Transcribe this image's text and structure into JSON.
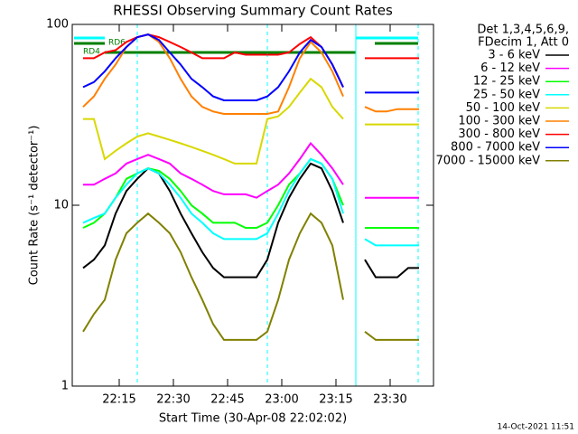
{
  "chart_data": {
    "type": "line",
    "title": "RHESSI Observing Summary Count Rates",
    "xlabel": "Start Time (30-Apr-08 22:02:02)",
    "ylabel": "Count Rate (s⁻¹ detector⁻¹)",
    "footer": "14-Oct-2021 11:51",
    "legend_header": [
      "Det 1,3,4,5,6,9,",
      "FDecim 1, Att 0"
    ],
    "annotations": [
      "RD6",
      "RD4"
    ],
    "log_y": true,
    "xlim": [
      "22:02",
      "23:42"
    ],
    "xticks": [
      "22:15",
      "22:30",
      "22:45",
      "23:00",
      "23:15",
      "23:30"
    ],
    "ylim": [
      1,
      100
    ],
    "yticks": [
      1,
      10,
      100
    ],
    "x": [
      "22:05",
      "22:08",
      "22:11",
      "22:14",
      "22:17",
      "22:20",
      "22:23",
      "22:26",
      "22:29",
      "22:32",
      "22:35",
      "22:38",
      "22:41",
      "22:44",
      "22:47",
      "22:50",
      "22:53",
      "22:56",
      "22:59",
      "23:02",
      "23:05",
      "23:08",
      "23:11",
      "23:14",
      "23:17",
      "23:20",
      "23:23",
      "23:26",
      "23:29",
      "23:32",
      "23:35",
      "23:38"
    ],
    "series": [
      {
        "name": "3 - 6 keV",
        "color": "#000000",
        "values": [
          4.5,
          5,
          6,
          9,
          12,
          14,
          16,
          15,
          12,
          9,
          7,
          5.5,
          4.5,
          4,
          4,
          4,
          4,
          5,
          8,
          11,
          14,
          17,
          16,
          12,
          8,
          null,
          5,
          4,
          4,
          4,
          4.5,
          4.5
        ]
      },
      {
        "name": "6 - 12 keV",
        "color": "#ff00ff",
        "values": [
          13,
          13,
          14,
          15,
          17,
          18,
          19,
          18,
          17,
          15,
          14,
          13,
          12,
          11.5,
          11.5,
          11.5,
          11,
          12,
          13,
          15,
          18,
          22,
          19,
          16,
          13,
          null,
          11,
          11,
          11,
          11,
          11,
          11
        ]
      },
      {
        "name": "12 - 25 keV",
        "color": "#00ff00",
        "values": [
          7.5,
          8,
          9,
          11,
          14,
          15,
          16,
          15.5,
          14,
          12,
          10,
          9,
          8,
          8,
          8,
          7.5,
          7.5,
          8,
          10,
          13,
          15,
          18,
          17,
          14,
          10,
          null,
          7.5,
          7.5,
          7.5,
          7.5,
          7.5,
          7.5
        ]
      },
      {
        "name": "25 - 50 keV",
        "color": "#00ffff",
        "values": [
          8,
          8.5,
          9,
          11,
          13,
          15,
          16,
          15,
          13,
          11,
          9,
          8,
          7,
          6.5,
          6.5,
          6.5,
          6.5,
          7,
          9,
          12,
          15,
          18,
          17,
          14,
          9,
          null,
          6.5,
          6,
          6,
          6,
          6,
          6
        ]
      },
      {
        "name": "50 - 100 keV",
        "color": "#d8d800",
        "values": [
          30,
          30,
          18,
          20,
          22,
          24,
          25,
          24,
          23,
          22,
          21,
          20,
          19,
          18,
          17,
          17,
          17,
          30,
          31,
          35,
          42,
          50,
          45,
          35,
          30,
          null,
          28,
          28,
          28,
          28,
          28,
          28
        ]
      },
      {
        "name": "100 - 300 keV",
        "color": "#ff8000",
        "values": [
          35,
          40,
          50,
          60,
          75,
          85,
          88,
          80,
          65,
          50,
          40,
          35,
          33,
          32,
          32,
          32,
          32,
          32,
          33,
          45,
          65,
          80,
          70,
          55,
          40,
          null,
          35,
          33,
          33,
          34,
          34,
          34
        ]
      },
      {
        "name": "300 - 800 keV",
        "color": "#ff0000",
        "values": [
          65,
          65,
          70,
          72,
          80,
          85,
          88,
          85,
          80,
          75,
          70,
          65,
          65,
          65,
          70,
          68,
          68,
          68,
          68,
          70,
          78,
          85,
          75,
          60,
          45,
          null,
          65,
          65,
          65,
          65,
          65,
          65
        ]
      },
      {
        "name": "800 - 7000 keV",
        "color": "#0000ff",
        "values": [
          45,
          48,
          55,
          65,
          75,
          85,
          88,
          82,
          70,
          60,
          50,
          45,
          40,
          38,
          38,
          38,
          38,
          40,
          45,
          55,
          70,
          82,
          75,
          60,
          45,
          null,
          42,
          42,
          42,
          42,
          42,
          42
        ]
      },
      {
        "name": "7000 - 15000 keV",
        "color": "#808000",
        "values": [
          2,
          2.5,
          3,
          5,
          7,
          8,
          9,
          8,
          7,
          5.5,
          4,
          3,
          2.2,
          1.8,
          1.8,
          1.8,
          1.8,
          2,
          3,
          5,
          7,
          9,
          8,
          6,
          3,
          null,
          2,
          1.8,
          1.8,
          1.8,
          1.8,
          1.8
        ]
      }
    ]
  }
}
